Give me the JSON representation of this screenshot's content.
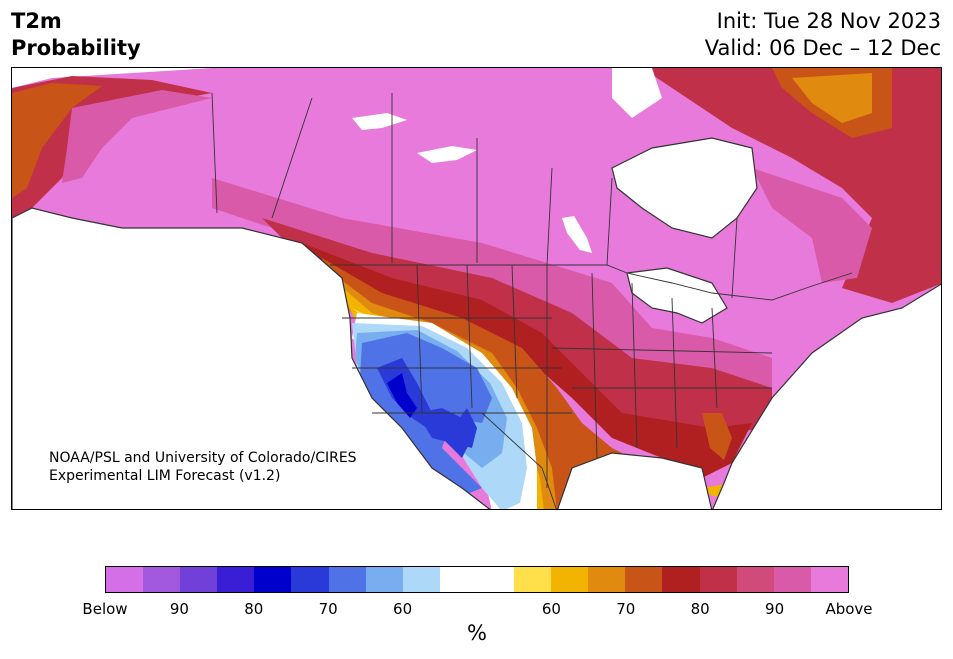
{
  "title": {
    "line1": "T2m",
    "line2": "Probability"
  },
  "dates": {
    "init": "Init: Tue 28 Nov 2023",
    "valid": "Valid: 06 Dec – 12 Dec"
  },
  "credit": {
    "line1": "NOAA/PSL and University of Colorado/CIRES",
    "line2": "Experimental LIM Forecast (v1.2)"
  },
  "colorbar": {
    "colors": [
      "#d46fe8",
      "#a259e0",
      "#7040d8",
      "#3a1ed6",
      "#0000cc",
      "#2a3ad8",
      "#4f72e6",
      "#78aef0",
      "#aed8f8",
      "#ffffff",
      "#ffffff",
      "#ffe04a",
      "#f2b400",
      "#e08a10",
      "#c85418",
      "#b02020",
      "#c03048",
      "#d04a7a",
      "#d95aa8",
      "#e87adc"
    ],
    "labels": [
      "Below",
      "90",
      "80",
      "70",
      "60",
      "60",
      "70",
      "80",
      "90",
      "Above"
    ],
    "unit": "%"
  },
  "map_colors": {
    "above": "#e87adc",
    "p90": "#d95aa8",
    "p80": "#c03048",
    "p75": "#b02020",
    "p70": "#c85418",
    "p65": "#e08a10",
    "p60": "#f2b400",
    "p55": "#ffe04a",
    "b55": "#aed8f8",
    "b60": "#78aef0",
    "b70": "#4f72e6",
    "b75": "#2a3ad8",
    "b80": "#0000cc",
    "border": "#333333"
  }
}
